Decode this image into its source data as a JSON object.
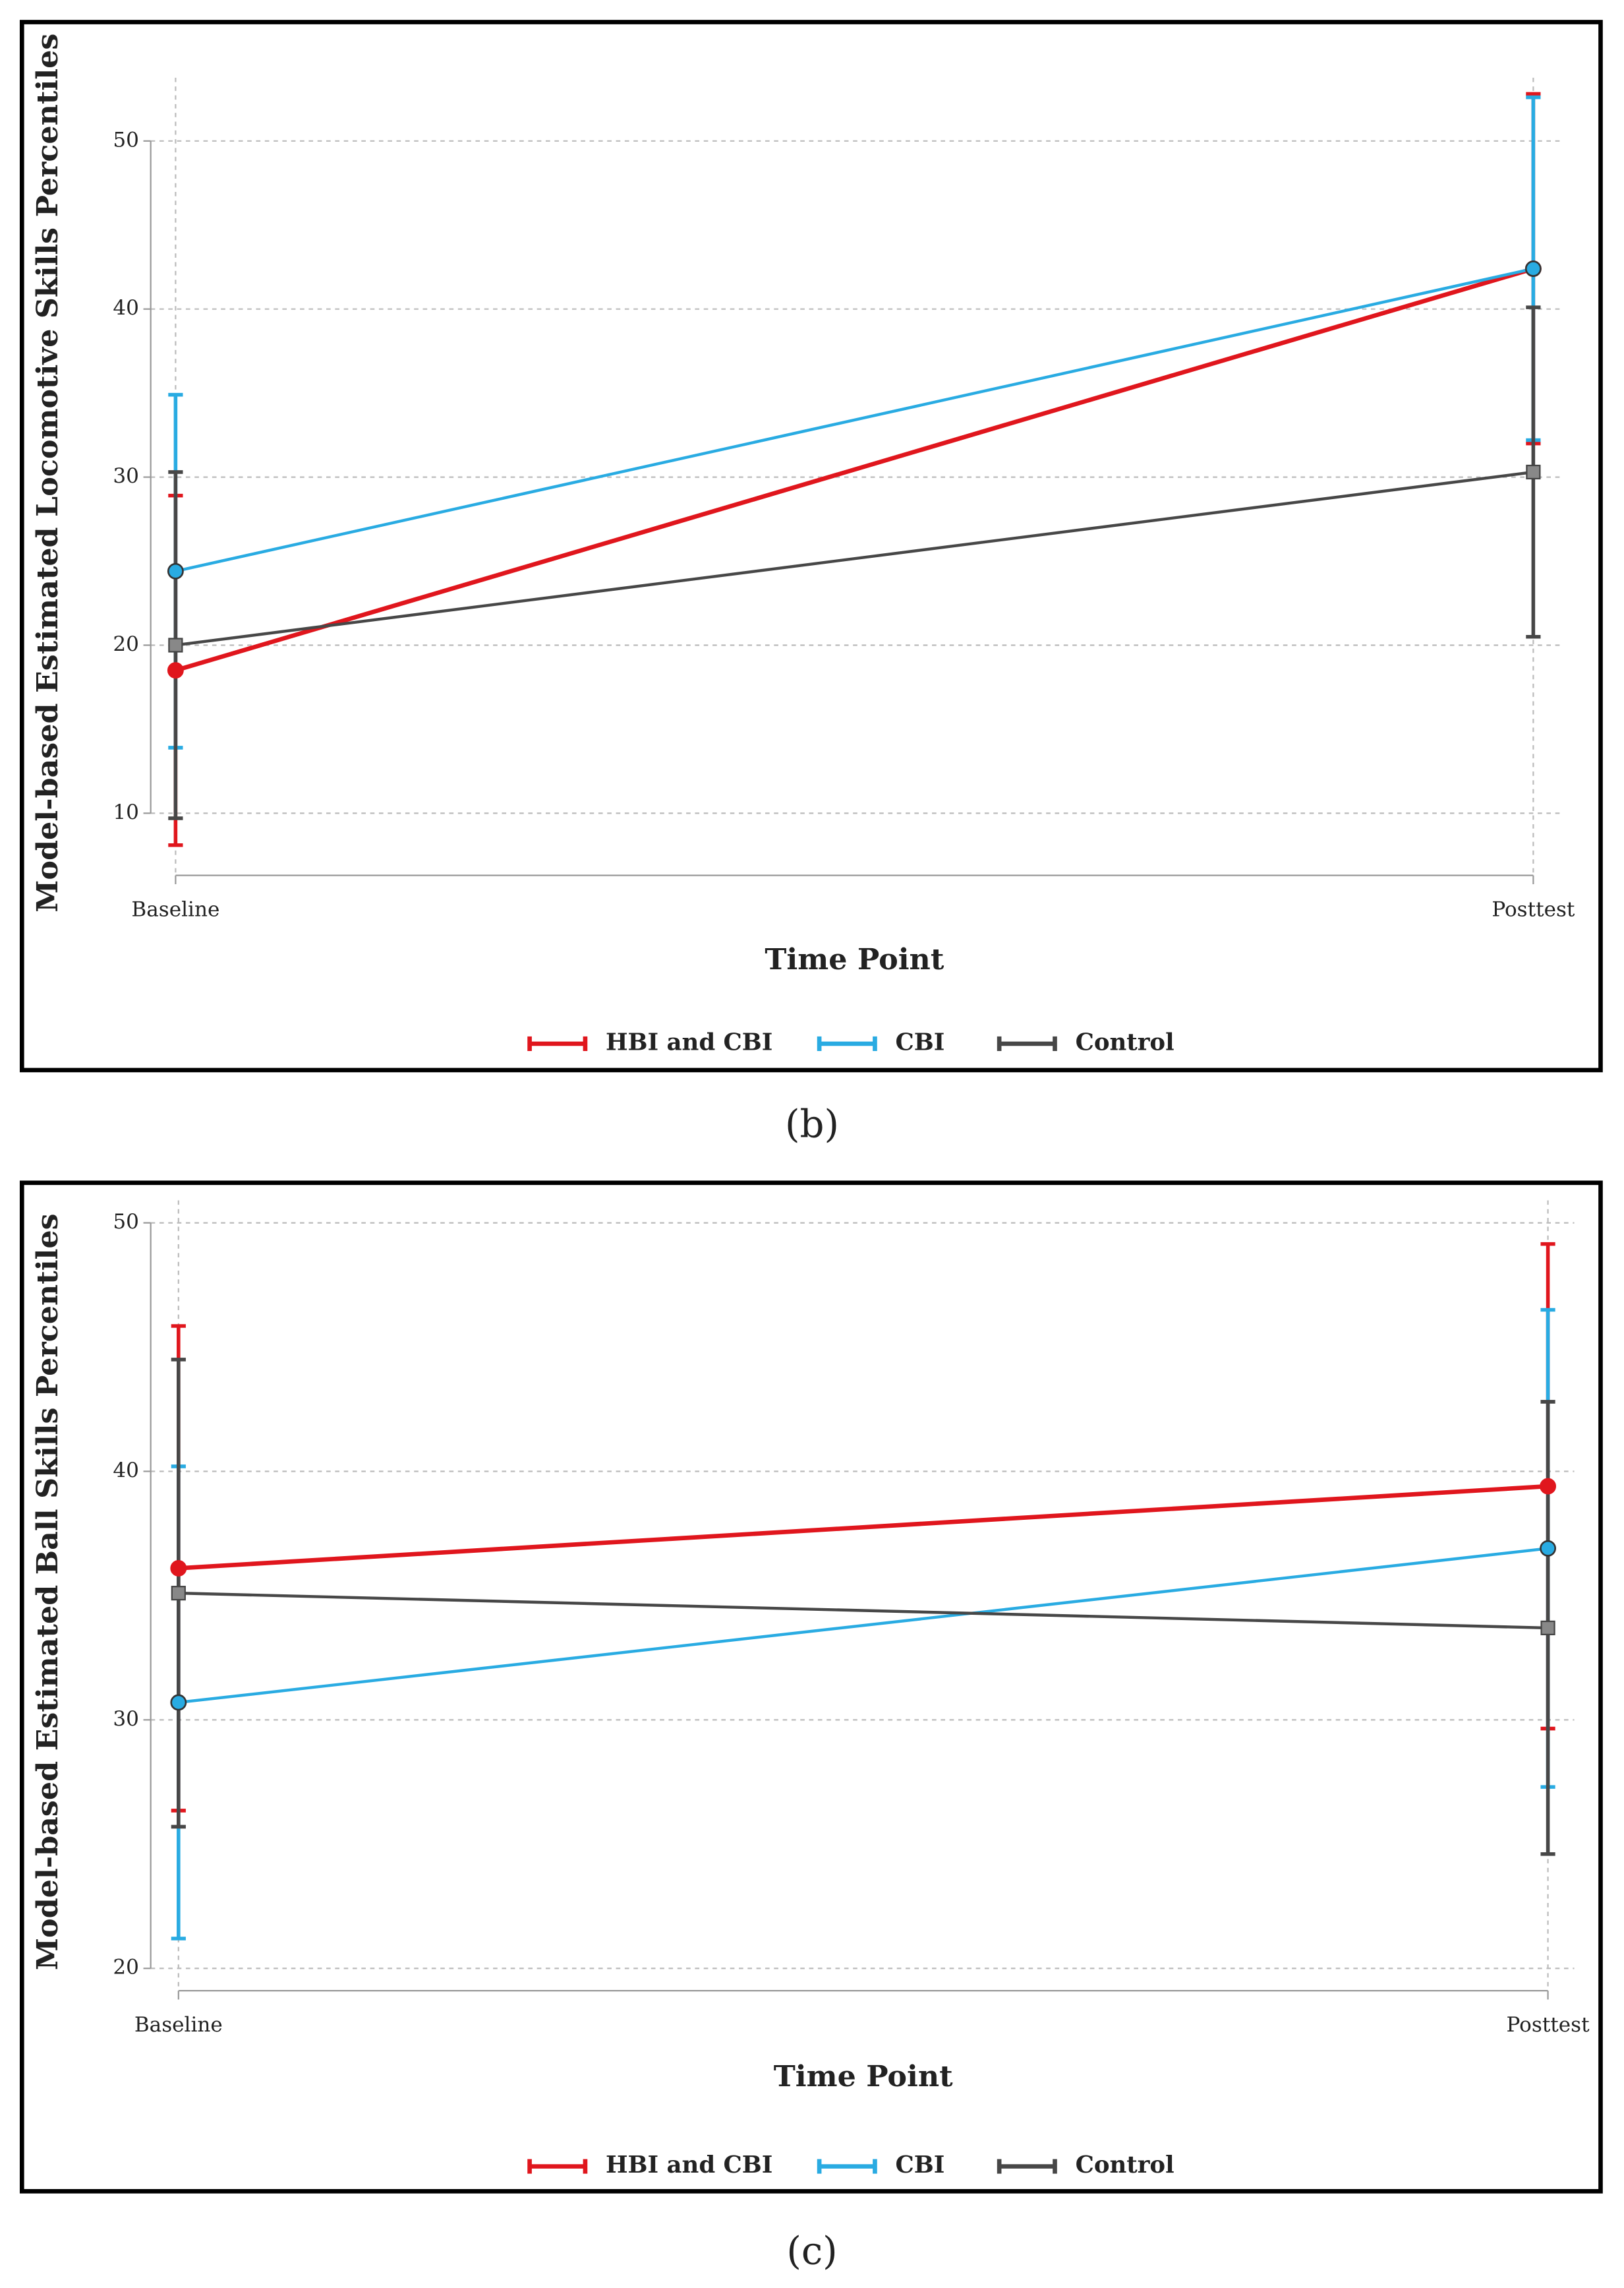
{
  "chart_data": [
    {
      "type": "line",
      "caption": "(b)",
      "xlabel": "Time Point",
      "ylabel": "Model-based Estimated Locomotive Skills Percentiles",
      "categories": [
        "Baseline",
        "Posttest"
      ],
      "ylim": [
        6.3,
        54.2
      ],
      "yticks": [
        10,
        20,
        30,
        40,
        50
      ],
      "grid": true,
      "legend": "bottom",
      "series": [
        {
          "name": "HBI and CBI",
          "color": "#e0161d",
          "marker": "circle",
          "values": [
            18.5,
            42.4
          ],
          "errors": [
            10.4,
            10.4
          ]
        },
        {
          "name": "CBI",
          "color": "#29abe2",
          "marker": "circle",
          "values": [
            24.4,
            42.4
          ],
          "errors": [
            10.5,
            10.2
          ]
        },
        {
          "name": "Control",
          "color": "#474747",
          "marker": "square",
          "values": [
            20.0,
            30.3
          ],
          "errors": [
            10.3,
            9.8
          ]
        }
      ]
    },
    {
      "type": "line",
      "caption": "(c)",
      "xlabel": "Time Point",
      "ylabel": "Model-based Estimated Ball Skills Percentiles",
      "categories": [
        "Baseline",
        "Posttest"
      ],
      "ylim": [
        19.1,
        51.2
      ],
      "yticks": [
        20,
        30,
        40,
        50
      ],
      "grid": true,
      "legend": "bottom",
      "series": [
        {
          "name": "HBI and CBI",
          "color": "#e0161d",
          "marker": "circle",
          "values": [
            36.1,
            39.4
          ],
          "errors": [
            9.75,
            9.75
          ]
        },
        {
          "name": "CBI",
          "color": "#29abe2",
          "marker": "circle",
          "values": [
            30.7,
            36.9
          ],
          "errors": [
            9.5,
            9.6
          ]
        },
        {
          "name": "Control",
          "color": "#474747",
          "marker": "square",
          "values": [
            35.1,
            33.7
          ],
          "errors": [
            9.4,
            9.1
          ]
        }
      ]
    }
  ]
}
